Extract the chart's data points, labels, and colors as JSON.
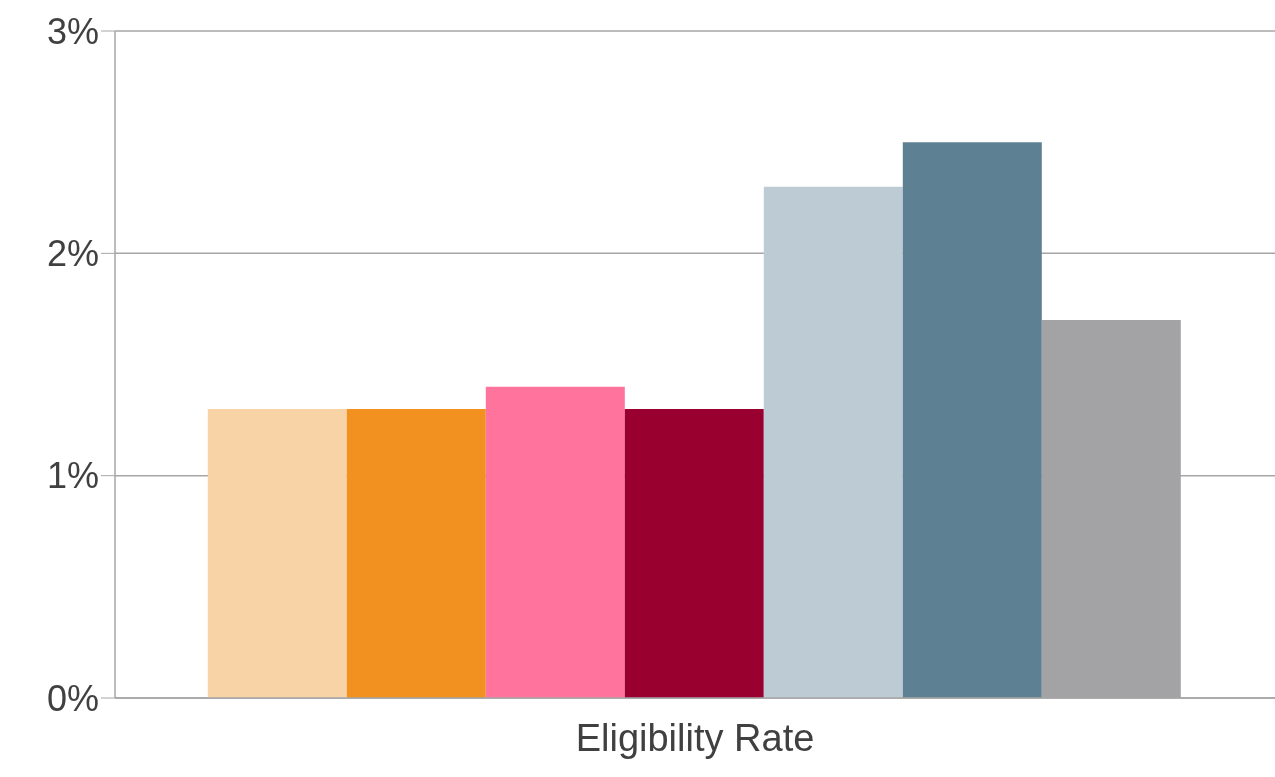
{
  "chart_data": {
    "type": "bar",
    "categories": [
      "Eligibility Rate"
    ],
    "series": [
      {
        "color": "#f8d3a6",
        "values": [
          1.3
        ]
      },
      {
        "color": "#f2911f",
        "values": [
          1.3
        ]
      },
      {
        "color": "#ff739c",
        "values": [
          1.4
        ]
      },
      {
        "color": "#990030",
        "values": [
          1.3
        ]
      },
      {
        "color": "#bccbd4",
        "values": [
          2.3
        ]
      },
      {
        "color": "#5e8093",
        "values": [
          2.5
        ]
      },
      {
        "color": "#a3a3a5",
        "values": [
          1.7
        ]
      }
    ],
    "ylim": [
      0,
      3
    ],
    "yticks": [
      {
        "value": 0,
        "label": "0%"
      },
      {
        "value": 1,
        "label": "1%"
      },
      {
        "value": 2,
        "label": "2%"
      },
      {
        "value": 3,
        "label": "3%"
      }
    ],
    "grid": "y",
    "legend": false
  }
}
